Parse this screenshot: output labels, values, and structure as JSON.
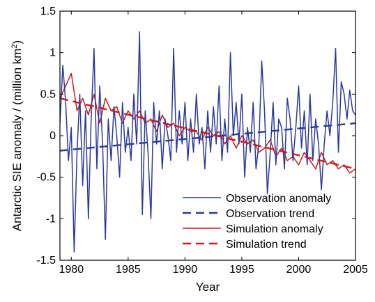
{
  "chart_data": {
    "type": "line",
    "xlabel": "Year",
    "ylabel": "Antarctic SIE anomaly / (million km",
    "ylabel_superscript": "2",
    "ylabel_close": ")",
    "xlim": [
      1979,
      2005
    ],
    "ylim": [
      -1.5,
      1.5
    ],
    "x_ticks": [
      1980,
      1985,
      1990,
      1995,
      2000,
      2005
    ],
    "x_tick_labels": [
      "1980",
      "1985",
      "1990",
      "1995",
      "2000",
      "2005"
    ],
    "y_ticks": [
      -1.5,
      -1,
      -0.5,
      0,
      0.5,
      1,
      1.5
    ],
    "y_tick_labels": [
      "-1.5",
      "-1",
      "-0.5",
      "0",
      "0.5",
      "1",
      "1.5"
    ],
    "grid": false,
    "legend_position": "bottom-right",
    "series": [
      {
        "name": "Observation anomaly",
        "color": "#2b3a9a",
        "style": "solid",
        "x": [
          1979.0,
          1979.25,
          1979.5,
          1979.75,
          1980.0,
          1980.25,
          1980.5,
          1980.75,
          1981.0,
          1981.25,
          1981.5,
          1981.75,
          1982.0,
          1982.25,
          1982.5,
          1982.75,
          1983.0,
          1983.25,
          1983.5,
          1983.75,
          1984.0,
          1984.25,
          1984.5,
          1984.75,
          1985.0,
          1985.25,
          1985.5,
          1985.75,
          1986.0,
          1986.25,
          1986.5,
          1986.75,
          1987.0,
          1987.25,
          1987.5,
          1987.75,
          1988.0,
          1988.25,
          1988.5,
          1988.75,
          1989.0,
          1989.25,
          1989.5,
          1989.75,
          1990.0,
          1990.25,
          1990.5,
          1990.75,
          1991.0,
          1991.25,
          1991.5,
          1991.75,
          1992.0,
          1992.25,
          1992.5,
          1992.75,
          1993.0,
          1993.25,
          1993.5,
          1993.75,
          1994.0,
          1994.25,
          1994.5,
          1994.75,
          1995.0,
          1995.25,
          1995.5,
          1995.75,
          1996.0,
          1996.25,
          1996.5,
          1996.75,
          1997.0,
          1997.25,
          1997.5,
          1997.75,
          1998.0,
          1998.25,
          1998.5,
          1998.75,
          1999.0,
          1999.25,
          1999.5,
          1999.75,
          2000.0,
          2000.25,
          2000.5,
          2000.75,
          2001.0,
          2001.25,
          2001.5,
          2001.75,
          2002.0,
          2002.25,
          2002.5,
          2002.75,
          2003.0,
          2003.25,
          2003.5,
          2003.75,
          2004.0,
          2004.25,
          2004.5,
          2004.75,
          2005.0
        ],
        "values": [
          0.15,
          0.85,
          0.4,
          -0.3,
          0.1,
          -1.4,
          -0.2,
          0.5,
          -0.6,
          0.3,
          -1.0,
          0.2,
          1.05,
          -0.4,
          0.6,
          -0.1,
          -1.25,
          0.2,
          -0.3,
          0.35,
          0.0,
          -0.5,
          0.4,
          -0.2,
          0.1,
          -0.3,
          0.5,
          -0.1,
          1.25,
          -0.95,
          0.3,
          -0.2,
          -1.0,
          0.4,
          -0.1,
          0.3,
          -0.4,
          0.2,
          0.0,
          -0.3,
          1.05,
          -0.2,
          0.3,
          -0.1,
          0.4,
          -0.3,
          0.2,
          -0.2,
          0.5,
          -0.1,
          0.1,
          -0.4,
          0.3,
          -0.2,
          0.35,
          -0.1,
          0.6,
          -0.3,
          0.2,
          -0.2,
          1.0,
          0.0,
          0.4,
          -0.1,
          0.5,
          -0.5,
          0.1,
          -0.2,
          0.4,
          -0.4,
          -0.1,
          0.9,
          0.3,
          -0.7,
          -0.2,
          0.4,
          -0.35,
          0.2,
          0.1,
          -0.4,
          0.45,
          0.2,
          -0.3,
          0.1,
          0.6,
          -0.15,
          0.3,
          -0.35,
          0.5,
          -0.3,
          0.2,
          -0.1,
          -0.65,
          -0.1,
          0.3,
          0.0,
          0.4,
          1.05,
          -0.2,
          0.65,
          0.5,
          0.2,
          0.55,
          0.3,
          0.25
        ]
      },
      {
        "name": "Observation trend",
        "color": "#2b3a9a",
        "style": "dashed",
        "x": [
          1979,
          2005
        ],
        "values": [
          -0.18,
          0.15
        ]
      },
      {
        "name": "Simulation anomaly",
        "color": "#cc1a1a",
        "style": "solid",
        "x": [
          1979.0,
          1979.5,
          1980.0,
          1980.5,
          1981.0,
          1981.5,
          1982.0,
          1982.5,
          1983.0,
          1983.5,
          1984.0,
          1984.5,
          1985.0,
          1985.5,
          1986.0,
          1986.5,
          1987.0,
          1987.5,
          1988.0,
          1988.5,
          1989.0,
          1989.5,
          1990.0,
          1990.5,
          1991.0,
          1991.5,
          1992.0,
          1992.5,
          1993.0,
          1993.5,
          1994.0,
          1994.5,
          1995.0,
          1995.5,
          1996.0,
          1996.5,
          1997.0,
          1997.5,
          1998.0,
          1998.5,
          1999.0,
          1999.5,
          2000.0,
          2000.5,
          2001.0,
          2001.5,
          2002.0,
          2002.5,
          2003.0,
          2003.5,
          2004.0,
          2004.5,
          2005.0
        ],
        "values": [
          0.45,
          0.6,
          0.75,
          0.3,
          0.45,
          0.25,
          0.5,
          0.15,
          0.45,
          0.3,
          0.35,
          0.15,
          0.3,
          0.2,
          0.3,
          0.15,
          0.2,
          0.05,
          0.25,
          0.1,
          0.15,
          0.0,
          0.1,
          0.05,
          0.05,
          -0.05,
          0.1,
          0.0,
          0.05,
          -0.1,
          0.0,
          -0.15,
          0.0,
          -0.1,
          -0.05,
          -0.2,
          -0.15,
          -0.05,
          -0.25,
          -0.15,
          -0.3,
          -0.25,
          -0.35,
          -0.2,
          -0.3,
          -0.4,
          -0.2,
          -0.35,
          -0.3,
          -0.4,
          -0.35,
          -0.45,
          -0.4
        ]
      },
      {
        "name": "Simulation trend",
        "color": "#cc1a1a",
        "style": "dashed",
        "x": [
          1979,
          2005
        ],
        "values": [
          0.45,
          -0.4
        ]
      }
    ]
  }
}
